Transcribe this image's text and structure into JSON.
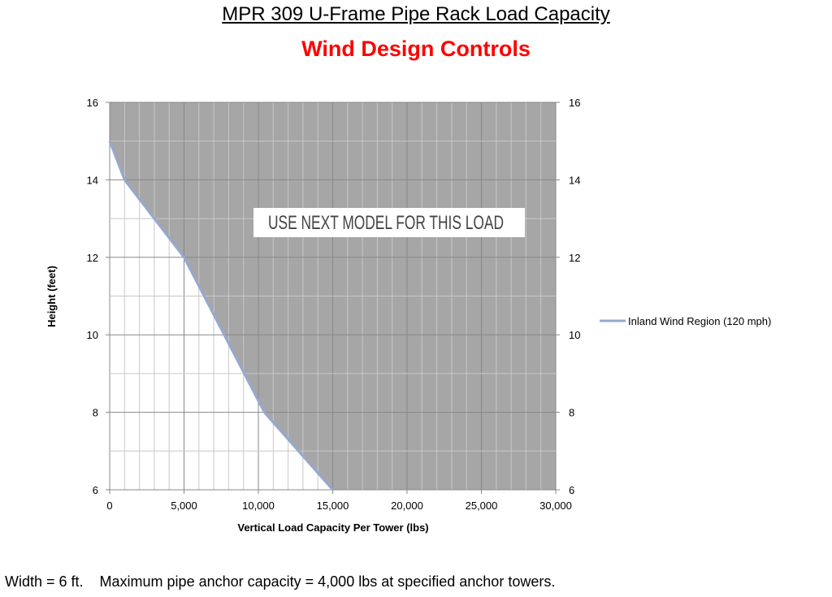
{
  "title": "MPR 309  U-Frame Pipe Rack Load Capacity",
  "subtitle": "Wind Design Controls",
  "footer": "Width = 6 ft.    Maximum pipe anchor capacity = 4,000 lbs at specified anchor towers.",
  "chart_data": {
    "type": "area",
    "xlabel": "Vertical Load Capacity Per Tower (lbs)",
    "ylabel": "Height (feet)",
    "xlim": [
      0,
      30000
    ],
    "ylim": [
      6,
      16
    ],
    "x_ticks": [
      "0",
      "5,000",
      "10,000",
      "15,000",
      "20,000",
      "25,000",
      "30,000"
    ],
    "y_ticks": [
      "6",
      "8",
      "10",
      "12",
      "14",
      "16"
    ],
    "y2_ticks": [
      "6",
      "8",
      "10",
      "12",
      "14",
      "16"
    ],
    "grid": true,
    "legend_position": "right",
    "annotation": "USE NEXT MODEL FOR THIS LOAD",
    "series": [
      {
        "name": "Inland Wind Region (120 mph)",
        "color": "#95a9d0",
        "x": [
          0,
          1000,
          5000,
          10400,
          15000
        ],
        "y": [
          15,
          14,
          12,
          8,
          6
        ]
      }
    ],
    "shaded_region_color": "#a6a6a6"
  }
}
